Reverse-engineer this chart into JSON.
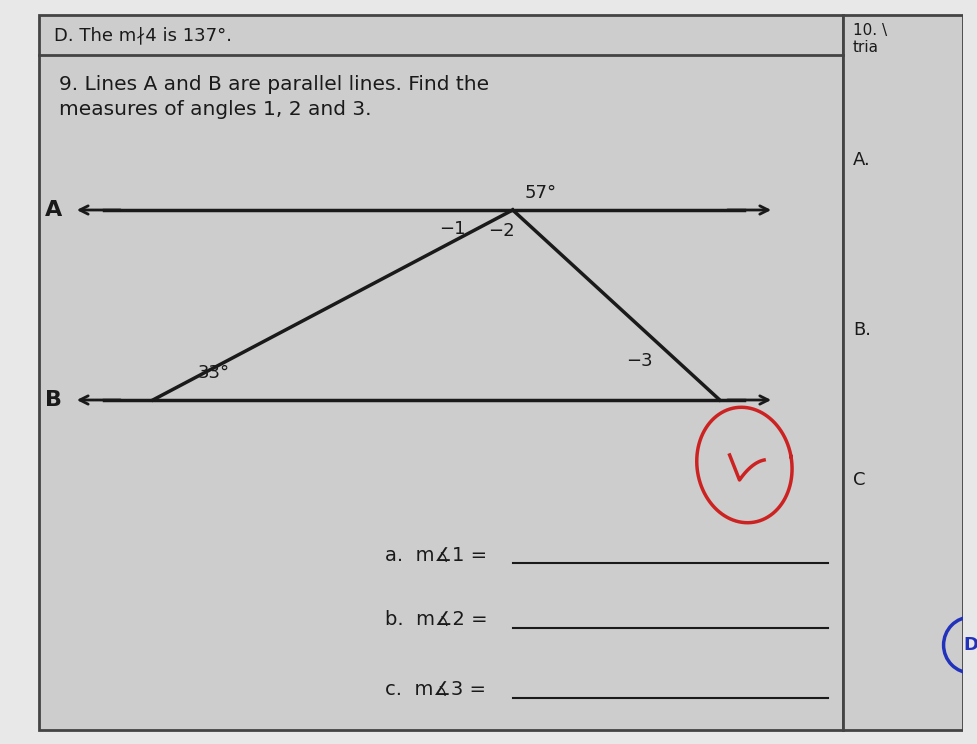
{
  "background_color": "#e8e8e8",
  "main_bg": "#d4d4d4",
  "white_bg": "#f0f0f0",
  "title_text1": "9. Lines A and B are parallel lines. Find the",
  "title_text2": "measures of angles 1, 2 and 3.",
  "title_fontsize": 14.5,
  "header_text": "D. The m∤4 is 137°.",
  "label_A": "A",
  "label_B": "B",
  "angle_57": "57°",
  "angle_33": "33°",
  "ang1": "−1",
  "ang2": "−2",
  "ang3": "−3",
  "answer_a": "a.  m∡1 = ",
  "answer_b": "b.  m∡2 = ",
  "answer_c": "c.  m∡3 = ",
  "answer_fontsize": 14,
  "line_color": "#1a1a1a",
  "text_color": "#1a1a1a",
  "border_color": "#444444",
  "checkmark_color": "#cc2222",
  "right_panel_color": "#e0e0e0"
}
